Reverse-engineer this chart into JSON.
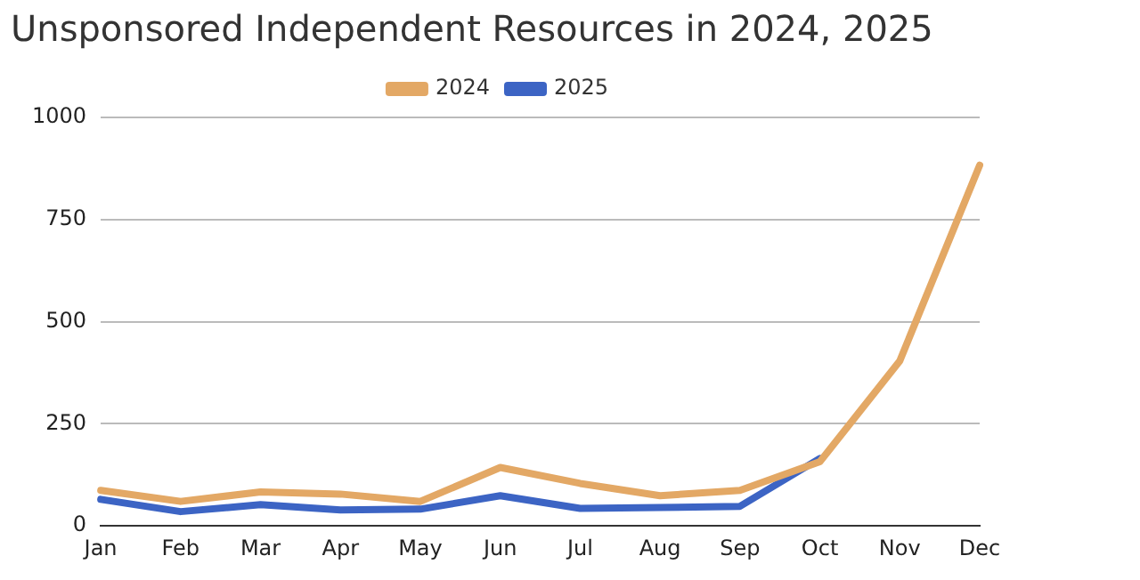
{
  "chart_data": {
    "type": "line",
    "title": "Unsponsored Independent Resources in 2024, 2025",
    "categories": [
      "Jan",
      "Feb",
      "Mar",
      "Apr",
      "May",
      "Jun",
      "Jul",
      "Aug",
      "Sep",
      "Oct",
      "Nov",
      "Dec"
    ],
    "series": [
      {
        "name": "2024",
        "color": "#e3a865",
        "values": [
          87,
          60,
          83,
          78,
          60,
          143,
          104,
          74,
          87,
          157,
          404,
          883
        ]
      },
      {
        "name": "2025",
        "color": "#3c64c4",
        "values": [
          65,
          35,
          52,
          39,
          41,
          74,
          43,
          45,
          48,
          165,
          null,
          null
        ]
      }
    ],
    "ylim": [
      0,
      1000
    ],
    "yticks": [
      0,
      250,
      500,
      750,
      1000
    ],
    "grid": "y",
    "legend": "top",
    "marker": "none",
    "line_style": "solid"
  }
}
